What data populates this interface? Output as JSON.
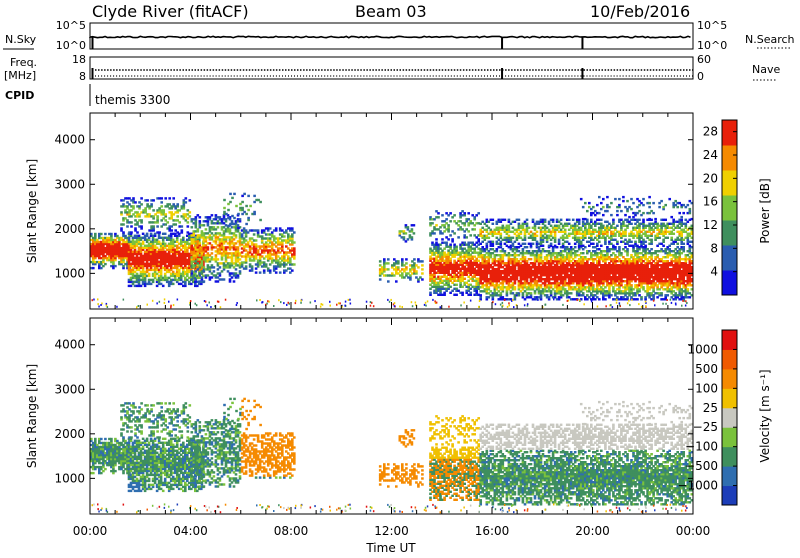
{
  "header": {
    "station": "Clyde River (fitACF)",
    "beam": "Beam 03",
    "date": "10/Feb/2016"
  },
  "param_strips": {
    "nsky_label": "N.Sky",
    "nsky_ticks": [
      "10^5",
      "10^0"
    ],
    "nsearch_label": "N.Search",
    "nsearch_ticks": [
      "10^5",
      "10^0"
    ],
    "freq_label": "Freq.",
    "freq_unit": "[MHz]",
    "freq_ticks": [
      "18",
      "8"
    ],
    "nave_label": "Nave",
    "nave_ticks": [
      "60",
      "0"
    ],
    "cpid_label": "CPID",
    "cpid_value": "themis 3300"
  },
  "chart_data": [
    {
      "type": "heatmap",
      "name": "power",
      "ylabel": "Slant Range [km]",
      "ylim": [
        200,
        4600
      ],
      "yticks": [
        "1000",
        "2000",
        "3000",
        "4000"
      ],
      "xlim": [
        0,
        24
      ],
      "colorbar_label": "Power [dB]",
      "colorbar_ticks": [
        "4",
        "8",
        "12",
        "16",
        "20",
        "24",
        "28"
      ],
      "colorbar_colors": [
        "#1010e0",
        "#2a5db0",
        "#3f8f5e",
        "#7ac23c",
        "#f0d000",
        "#f58a00",
        "#e8200a"
      ],
      "colorbar_range": [
        0,
        30
      ]
    },
    {
      "type": "heatmap",
      "name": "velocity",
      "ylabel": "Slant Range [km]",
      "ylim": [
        200,
        4600
      ],
      "yticks": [
        "1000",
        "2000",
        "3000",
        "4000"
      ],
      "xlim": [
        0,
        24
      ],
      "xticks": [
        "00:00",
        "04:00",
        "08:00",
        "12:00",
        "16:00",
        "20:00",
        "00:00"
      ],
      "xlabel": "Time UT",
      "colorbar_label": "Velocity [m s⁻¹]",
      "colorbar_ticks": [
        "1000",
        "500",
        "100",
        "25",
        "−25",
        "−100",
        "−500",
        "−1000"
      ],
      "colorbar_colors": [
        "#1c3db8",
        "#2f6eb0",
        "#3f8f5e",
        "#7ac23c",
        "#c8c8c0",
        "#f0c000",
        "#f58a00",
        "#f05a00",
        "#e01010"
      ]
    }
  ]
}
